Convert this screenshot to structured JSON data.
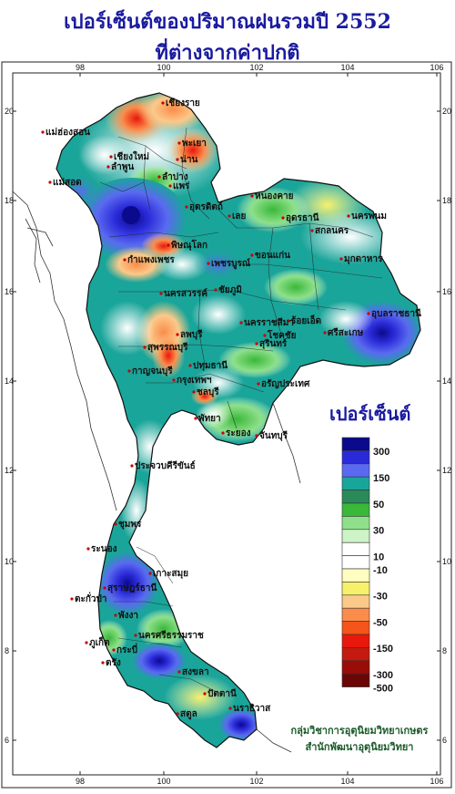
{
  "title": {
    "line1": "เปอร์เซ็นต์ของปริมาณฝนรวมปี  2552",
    "line2": "ที่ต่างจากค่าปกติ"
  },
  "axes": {
    "x_ticks": [
      "98",
      "100",
      "102",
      "104",
      "106"
    ],
    "y_ticks": [
      "20",
      "18",
      "16",
      "14",
      "12",
      "10",
      "8",
      "6"
    ]
  },
  "legend": {
    "title": "เปอร์เซ็นต์",
    "items": [
      {
        "label": "300",
        "color": "#0a0a8c"
      },
      {
        "label": "",
        "color": "#2a2ad8"
      },
      {
        "label": "150",
        "color": "#5a6af0"
      },
      {
        "label": "",
        "color": "#1aa59a"
      },
      {
        "label": "50",
        "color": "#2a8a5a"
      },
      {
        "label": "",
        "color": "#3ab83a"
      },
      {
        "label": "30",
        "color": "#8ee08a"
      },
      {
        "label": "",
        "color": "#cdf3c6"
      },
      {
        "label": "10",
        "color": "#ffffff"
      },
      {
        "label": "-10",
        "color": "#ffffff"
      },
      {
        "label": "",
        "color": "#fffdc0"
      },
      {
        "label": "-30",
        "color": "#f7f06a"
      },
      {
        "label": "",
        "color": "#fbc98a"
      },
      {
        "label": "-50",
        "color": "#fb8c4a"
      },
      {
        "label": "",
        "color": "#f5541a"
      },
      {
        "label": "-150",
        "color": "#e8180c"
      },
      {
        "label": "",
        "color": "#c41a10"
      },
      {
        "label": "-300",
        "color": "#9a0c08"
      },
      {
        "label": "-500",
        "color": "#6a0606"
      }
    ]
  },
  "cities": [
    {
      "name": "เชียงราย"
    },
    {
      "name": "แม่ฮ่องสอน"
    },
    {
      "name": "พะเยา"
    },
    {
      "name": "เชียงใหม่"
    },
    {
      "name": "ลำพูน"
    },
    {
      "name": "น่าน"
    },
    {
      "name": "ลำปาง"
    },
    {
      "name": "แพร่"
    },
    {
      "name": "แม่สอด"
    },
    {
      "name": "อุตรดิตถ์"
    },
    {
      "name": "พิษณุโลก"
    },
    {
      "name": "เพชรบูรณ์"
    },
    {
      "name": "กำแพงเพชร"
    },
    {
      "name": "หนองคาย"
    },
    {
      "name": "อุดรธานี"
    },
    {
      "name": "นครพนม"
    },
    {
      "name": "สกลนคร"
    },
    {
      "name": "เลย"
    },
    {
      "name": "มุกดาหาร"
    },
    {
      "name": "ขอนแก่น"
    },
    {
      "name": "นครสวรรค์"
    },
    {
      "name": "ชัยภูมิ"
    },
    {
      "name": "ร้อยเอ็ด"
    },
    {
      "name": "อุบลราชธานี"
    },
    {
      "name": "ศรีสะเกษ"
    },
    {
      "name": "นครราชสีมา"
    },
    {
      "name": "โชคชัย"
    },
    {
      "name": "สุรินทร์"
    },
    {
      "name": "ลพบุรี"
    },
    {
      "name": "สุพรรณบุรี"
    },
    {
      "name": "กาญจนบุรี"
    },
    {
      "name": "ปทุมธานี"
    },
    {
      "name": "กรุงเทพฯ"
    },
    {
      "name": "อรัญประเทศ"
    },
    {
      "name": "ชลบุรี"
    },
    {
      "name": "พัทยา"
    },
    {
      "name": "ระยอง"
    },
    {
      "name": "จันทบุรี"
    },
    {
      "name": "ประจวบคีรีขันธ์"
    },
    {
      "name": "ชุมพร"
    },
    {
      "name": "ระนอง"
    },
    {
      "name": "เกาะสมุย"
    },
    {
      "name": "สุราษฎร์ธานี"
    },
    {
      "name": "ตะกั่วป่า"
    },
    {
      "name": "พังงา"
    },
    {
      "name": "นครศรีธรรมราช"
    },
    {
      "name": "ภูเก็ต"
    },
    {
      "name": "กระบี่"
    },
    {
      "name": "ตรัง"
    },
    {
      "name": "สงขลา"
    },
    {
      "name": "ปัตตานี"
    },
    {
      "name": "นราธิวาส"
    },
    {
      "name": "สตูล"
    }
  ],
  "credit": {
    "line1": "กลุ่มวิชาการอุตุนิยมวิทยาเกษตร",
    "line2": "สำนักพัฒนาอุตุนิยมวิทยา"
  }
}
